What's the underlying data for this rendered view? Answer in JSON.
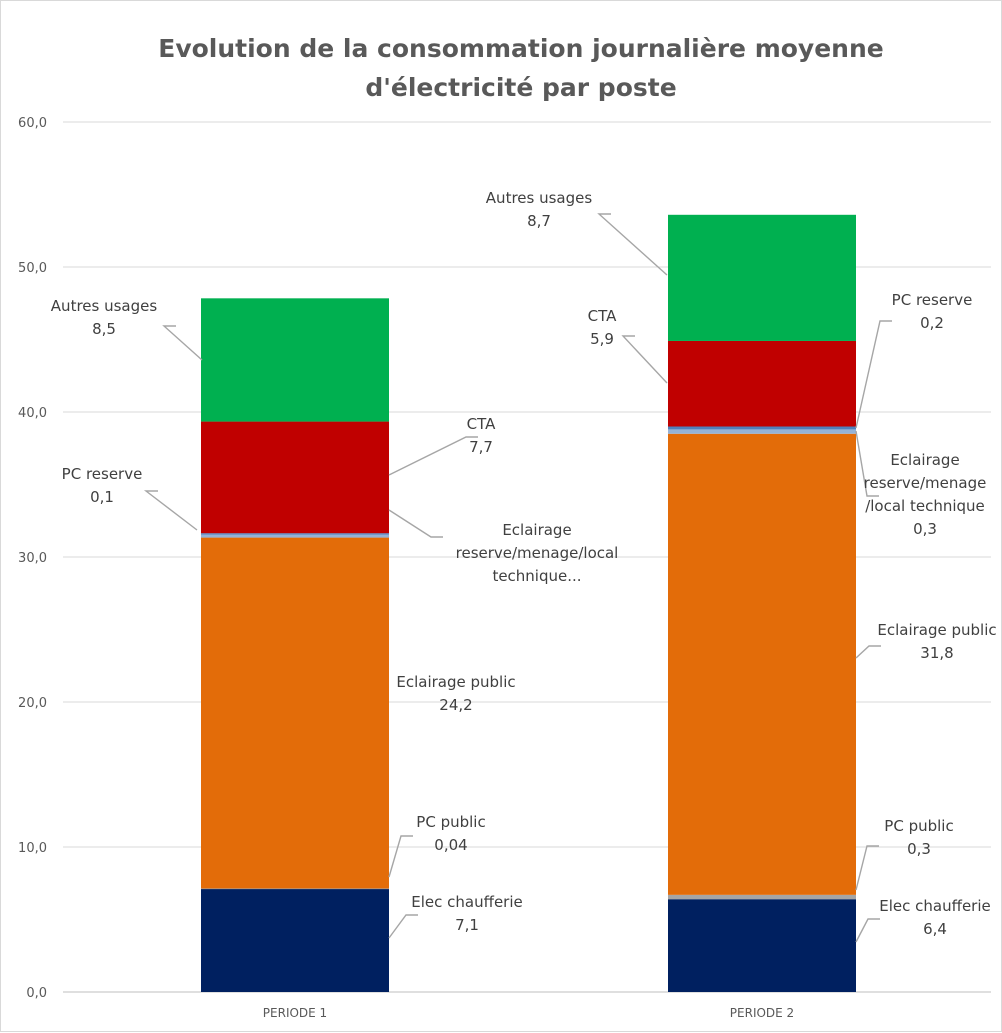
{
  "chart_data": {
    "type": "bar",
    "stacked": true,
    "title": "Evolution de la consommation journalière moyenne d'électricité par poste",
    "categories": [
      "PERIODE 1",
      "PERIODE 2"
    ],
    "ylim": [
      0,
      60
    ],
    "yticks": [
      "0,0",
      "10,0",
      "20,0",
      "30,0",
      "40,0",
      "50,0",
      "60,0"
    ],
    "grid": true,
    "legend": "none",
    "series": [
      {
        "name": "Elec chaufferie",
        "values": [
          7.1,
          6.4
        ],
        "labels": [
          "7,1",
          "6,4"
        ],
        "color": "#002060"
      },
      {
        "name": "PC public",
        "values": [
          0.04,
          0.3
        ],
        "labels": [
          "0,04",
          "0,3"
        ],
        "color": "#a5a5a5"
      },
      {
        "name": "Eclairage public",
        "values": [
          24.2,
          31.8
        ],
        "labels": [
          "24,2",
          "31,8"
        ],
        "color": "#e36c09"
      },
      {
        "name": "Eclairage reserve/menage/local technique",
        "values": [
          0.2,
          0.3
        ],
        "labels": [
          "",
          "0,3"
        ],
        "color": "#95b3d7"
      },
      {
        "name": "PC reserve",
        "values": [
          0.1,
          0.2
        ],
        "labels": [
          "0,1",
          "0,2"
        ],
        "color": "#4f81bd"
      },
      {
        "name": "CTA",
        "values": [
          7.7,
          5.9
        ],
        "labels": [
          "7,7",
          "5,9"
        ],
        "color": "#c00000"
      },
      {
        "name": "Autres usages",
        "values": [
          8.5,
          8.7
        ],
        "labels": [
          "8,5",
          "8,7"
        ],
        "color": "#00b050"
      }
    ],
    "annotations": [
      {
        "series": 0,
        "cat": 0,
        "lines": [
          "Elec chaufferie",
          "7,1"
        ]
      },
      {
        "series": 1,
        "cat": 0,
        "lines": [
          "PC public",
          "0,04"
        ]
      },
      {
        "series": 2,
        "cat": 0,
        "lines": [
          "Eclairage public",
          "24,2"
        ]
      },
      {
        "series": 3,
        "cat": 0,
        "lines": [
          "Eclairage",
          "reserve/menage/local",
          "technique..."
        ]
      },
      {
        "series": 4,
        "cat": 0,
        "lines": [
          "PC reserve",
          "0,1"
        ]
      },
      {
        "series": 5,
        "cat": 0,
        "lines": [
          "CTA",
          "7,7"
        ]
      },
      {
        "series": 6,
        "cat": 0,
        "lines": [
          "Autres usages",
          "8,5"
        ]
      },
      {
        "series": 0,
        "cat": 1,
        "lines": [
          "Elec chaufferie",
          "6,4"
        ]
      },
      {
        "series": 1,
        "cat": 1,
        "lines": [
          "PC public",
          "0,3"
        ]
      },
      {
        "series": 2,
        "cat": 1,
        "lines": [
          "Eclairage public",
          "31,8"
        ]
      },
      {
        "series": 3,
        "cat": 1,
        "lines": [
          "Eclairage",
          "reserve/menage",
          "/local technique",
          "0,3"
        ]
      },
      {
        "series": 4,
        "cat": 1,
        "lines": [
          "PC reserve",
          "0,2"
        ]
      },
      {
        "series": 5,
        "cat": 1,
        "lines": [
          "CTA",
          "5,9"
        ]
      },
      {
        "series": 6,
        "cat": 1,
        "lines": [
          "Autres usages",
          "8,7"
        ]
      }
    ]
  }
}
